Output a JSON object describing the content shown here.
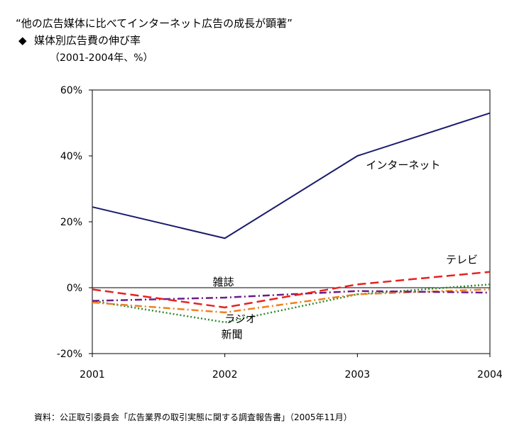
{
  "title": "“他の広告媒体に比べてインターネット広告の成長が顕著”",
  "subtitle": "媒体別広告費の伸び率",
  "subtitle_bullet": "◆",
  "unit_note": "（2001-2004年、%）",
  "source": "資料：公正取引委員会「広告業界の取引実態に関する調査報告書」（2005年11月）",
  "chart_data": {
    "type": "line",
    "x": [
      "2001",
      "2002",
      "2003",
      "2004"
    ],
    "ylim": [
      -20,
      60
    ],
    "yticks": [
      "60%",
      "40%",
      "20%",
      "0%",
      "-20%"
    ],
    "ytick_values": [
      60,
      40,
      20,
      0,
      -20
    ],
    "grid": false,
    "series": [
      {
        "name": "インターネット",
        "values": [
          24.5,
          15.0,
          40.0,
          53.0
        ],
        "color": "#1a1a6e",
        "dash": "solid"
      },
      {
        "name": "テレビ",
        "values": [
          -0.5,
          -6.0,
          1.0,
          4.8
        ],
        "color": "#e8211f",
        "dash": "long-dash"
      },
      {
        "name": "雑誌",
        "values": [
          -4.0,
          -3.0,
          -1.0,
          -1.5
        ],
        "color": "#6a1c8a",
        "dash": "dash-dot"
      },
      {
        "name": "ラジオ",
        "values": [
          -4.5,
          -7.5,
          -2.0,
          -0.5
        ],
        "color": "#f08020",
        "dash": "dash-dot"
      },
      {
        "name": "新聞",
        "values": [
          -4.0,
          -10.5,
          -2.0,
          1.0
        ],
        "color": "#2e8b2e",
        "dash": "dotted"
      }
    ],
    "labels": [
      "インターネット",
      "テレビ",
      "雑誌",
      "ラジオ",
      "新聞"
    ]
  }
}
